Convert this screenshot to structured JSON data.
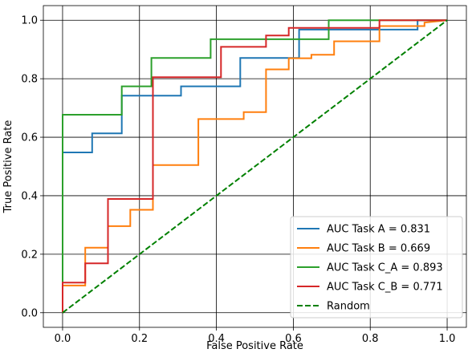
{
  "chart_data": {
    "type": "line",
    "title": "",
    "xlabel": "False Positive Rate",
    "ylabel": "True Positive Rate",
    "xlim": [
      -0.05,
      1.05
    ],
    "ylim": [
      -0.05,
      1.05
    ],
    "xticks": [
      "0.0",
      "0.2",
      "0.4",
      "0.6",
      "0.8",
      "1.0"
    ],
    "yticks": [
      "0.0",
      "0.2",
      "0.4",
      "0.6",
      "0.8",
      "1.0"
    ],
    "grid": true,
    "legend_position": "bottom-right",
    "series": [
      {
        "name": "AUC Task A = 0.831",
        "color": "#1f77b4",
        "style": "solid",
        "x": [
          0,
          0,
          0.077,
          0.077,
          0.154,
          0.154,
          0.308,
          0.308,
          0.462,
          0.462,
          0.615,
          0.615,
          0.923,
          0.923,
          1.0
        ],
        "y": [
          0,
          0.548,
          0.548,
          0.613,
          0.613,
          0.742,
          0.742,
          0.774,
          0.774,
          0.871,
          0.871,
          0.968,
          0.968,
          1.0,
          1.0
        ]
      },
      {
        "name": "AUC Task B = 0.669",
        "color": "#ff7f0e",
        "style": "solid",
        "x": [
          0,
          0,
          0.059,
          0.059,
          0.118,
          0.118,
          0.176,
          0.176,
          0.235,
          0.235,
          0.353,
          0.353,
          0.471,
          0.471,
          0.529,
          0.529,
          0.588,
          0.588,
          0.647,
          0.647,
          0.706,
          0.706,
          0.824,
          0.824,
          0.941,
          0.941,
          1.0
        ],
        "y": [
          0,
          0.093,
          0.093,
          0.222,
          0.222,
          0.296,
          0.296,
          0.352,
          0.352,
          0.505,
          0.505,
          0.662,
          0.662,
          0.686,
          0.686,
          0.832,
          0.832,
          0.87,
          0.87,
          0.882,
          0.882,
          0.928,
          0.928,
          0.98,
          0.98,
          0.992,
          1.0
        ]
      },
      {
        "name": "AUC Task C_A = 0.893",
        "color": "#2ca02c",
        "style": "solid",
        "x": [
          0,
          0,
          0.154,
          0.154,
          0.231,
          0.231,
          0.385,
          0.385,
          0.692,
          0.692,
          1.0
        ],
        "y": [
          0,
          0.677,
          0.677,
          0.774,
          0.774,
          0.871,
          0.871,
          0.935,
          0.935,
          1.0,
          1.0
        ]
      },
      {
        "name": "AUC Task C_B = 0.771",
        "color": "#d62728",
        "style": "solid",
        "x": [
          0,
          0,
          0.059,
          0.059,
          0.118,
          0.118,
          0.235,
          0.235,
          0.412,
          0.412,
          0.529,
          0.529,
          0.588,
          0.588,
          0.824,
          0.824,
          1.0
        ],
        "y": [
          0,
          0.103,
          0.103,
          0.169,
          0.169,
          0.389,
          0.389,
          0.805,
          0.805,
          0.909,
          0.909,
          0.948,
          0.948,
          0.974,
          0.974,
          1.0,
          1.0
        ]
      },
      {
        "name": "Random",
        "color": "#008000",
        "style": "dashed",
        "x": [
          0,
          1
        ],
        "y": [
          0,
          1
        ]
      }
    ]
  }
}
